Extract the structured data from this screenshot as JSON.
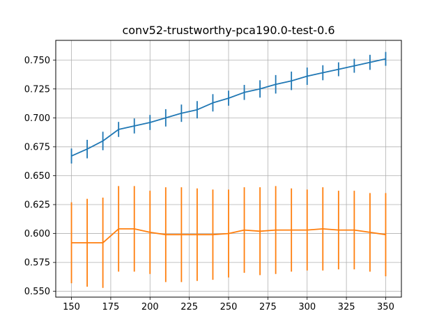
{
  "chart_data": {
    "type": "line",
    "title": "conv52-trustworthy-pca190.0-test-0.6",
    "xlabel": "",
    "ylabel": "",
    "xlim": [
      140,
      360
    ],
    "ylim": [
      0.545,
      0.767
    ],
    "xticks": [
      150,
      175,
      200,
      225,
      250,
      275,
      300,
      325,
      350
    ],
    "yticks": [
      0.55,
      0.575,
      0.6,
      0.625,
      0.65,
      0.675,
      0.7,
      0.725,
      0.75
    ],
    "ytick_labels": [
      "0.550",
      "0.575",
      "0.600",
      "0.625",
      "0.650",
      "0.675",
      "0.700",
      "0.725",
      "0.750"
    ],
    "grid": true,
    "error_bars": true,
    "x": [
      150,
      160,
      170,
      180,
      190,
      200,
      210,
      220,
      230,
      240,
      250,
      260,
      270,
      280,
      290,
      300,
      310,
      320,
      330,
      340,
      350
    ],
    "series": [
      {
        "color": "#1f77b4",
        "values": [
          0.667,
          0.673,
          0.68,
          0.69,
          0.693,
          0.696,
          0.7,
          0.704,
          0.707,
          0.713,
          0.717,
          0.722,
          0.725,
          0.729,
          0.732,
          0.736,
          0.739,
          0.742,
          0.745,
          0.748,
          0.751
        ],
        "errors": [
          0.0065,
          0.008,
          0.008,
          0.0065,
          0.0065,
          0.0065,
          0.0075,
          0.0075,
          0.0075,
          0.0075,
          0.0065,
          0.0065,
          0.0075,
          0.008,
          0.008,
          0.0075,
          0.0065,
          0.006,
          0.006,
          0.0065,
          0.006
        ]
      },
      {
        "color": "#ff7f0e",
        "values": [
          0.592,
          0.592,
          0.592,
          0.604,
          0.604,
          0.601,
          0.599,
          0.599,
          0.599,
          0.599,
          0.6,
          0.603,
          0.602,
          0.603,
          0.603,
          0.603,
          0.604,
          0.603,
          0.603,
          0.601,
          0.599
        ],
        "errors": [
          0.035,
          0.038,
          0.039,
          0.037,
          0.037,
          0.036,
          0.041,
          0.041,
          0.04,
          0.039,
          0.038,
          0.037,
          0.038,
          0.038,
          0.036,
          0.035,
          0.036,
          0.034,
          0.034,
          0.034,
          0.036
        ]
      }
    ]
  }
}
